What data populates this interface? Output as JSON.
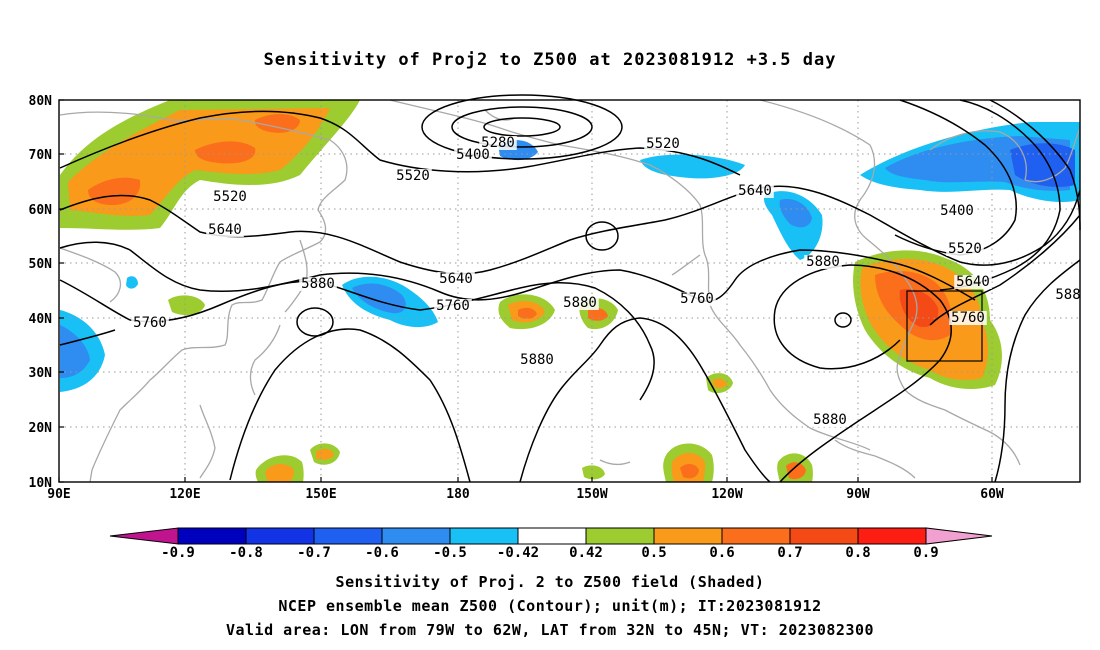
{
  "title": "Sensitivity of Proj2 to Z500 at 2023081912 +3.5 day",
  "map": {
    "lat_labels": [
      "80N",
      "70N",
      "60N",
      "50N",
      "40N",
      "30N",
      "20N",
      "10N"
    ],
    "lon_labels": [
      "90E",
      "120E",
      "150E",
      "180",
      "150W",
      "120W",
      "90W",
      "60W"
    ],
    "contour_labels": [
      {
        "text": "5280"
      },
      {
        "text": "5400"
      },
      {
        "text": "5520"
      },
      {
        "text": "5520"
      },
      {
        "text": "5520"
      },
      {
        "text": "5640"
      },
      {
        "text": "5640"
      },
      {
        "text": "5400"
      },
      {
        "text": "5640"
      },
      {
        "text": "5520"
      },
      {
        "text": "5640"
      },
      {
        "text": "5880"
      },
      {
        "text": "5760"
      },
      {
        "text": "5880"
      },
      {
        "text": "5760"
      },
      {
        "text": "5880"
      },
      {
        "text": "5760"
      },
      {
        "text": "5880"
      },
      {
        "text": "5880"
      },
      {
        "text": "5760"
      },
      {
        "text": "588"
      }
    ],
    "valid_area_box": {
      "lon_west": "79W",
      "lon_east": "62W",
      "lat_south": "32N",
      "lat_north": "45N"
    }
  },
  "colorbar": {
    "labels": [
      "-0.9",
      "-0.8",
      "-0.7",
      "-0.6",
      "-0.5",
      "-0.42",
      "0.42",
      "0.5",
      "0.6",
      "0.7",
      "0.8",
      "0.9"
    ],
    "colors": [
      "#0000bf",
      "#1234e6",
      "#1f60f0",
      "#2f8cf0",
      "#18c0f5",
      "#ffffff",
      "#9ccc2f",
      "#fa9a1a",
      "#fb6f1c",
      "#f34a16",
      "#fd1d12"
    ],
    "low_extend_color": "#c0148f",
    "high_extend_color": "#f2a0d0"
  },
  "footer": {
    "line1": "Sensitivity of Proj. 2 to Z500 field (Shaded)",
    "line2": "NCEP ensemble mean Z500 (Contour); unit(m); IT:2023081912",
    "line3": "Valid area: LON from 79W to 62W, LAT from 32N to 45N; VT: 2023082300"
  }
}
